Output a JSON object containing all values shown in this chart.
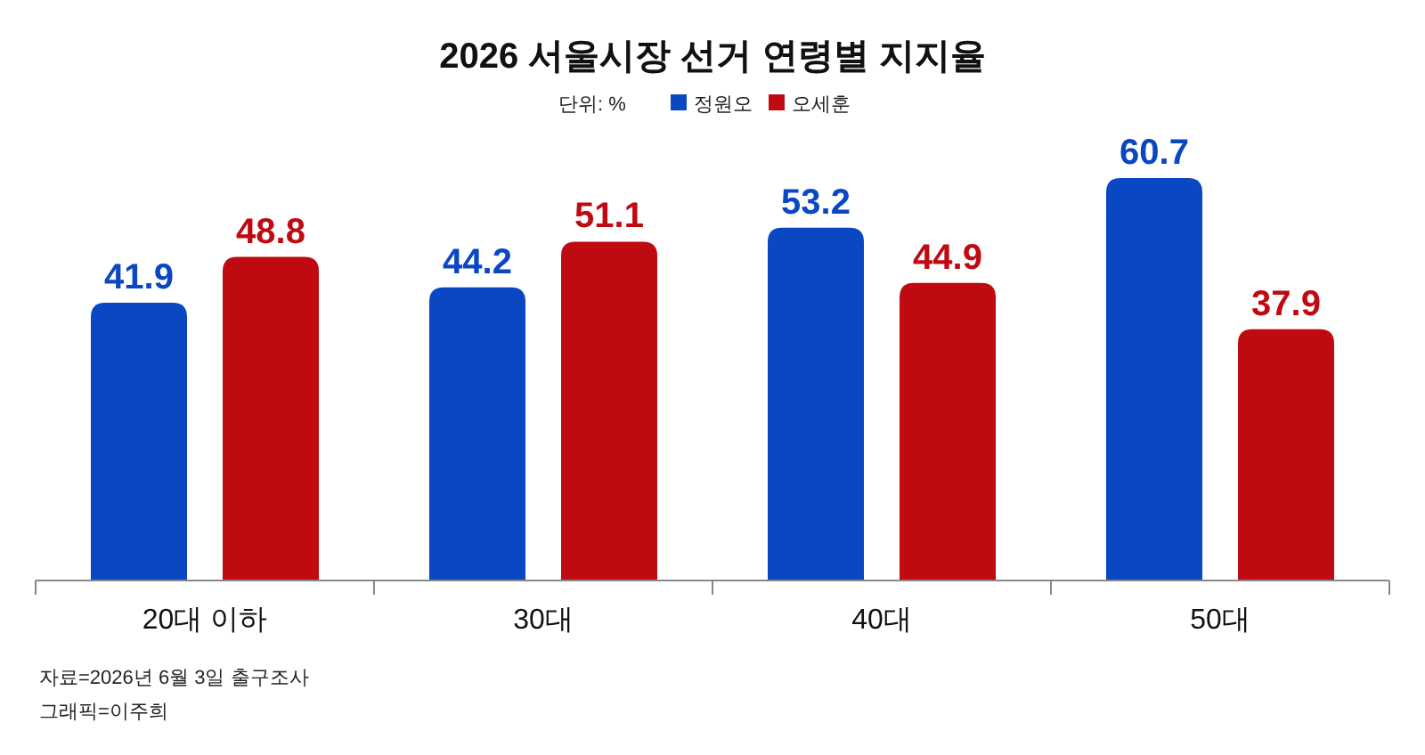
{
  "chart_data": {
    "type": "bar",
    "title": "2026 서울시장 선거 연령별 지지율",
    "legend_title": "단위: %",
    "categories": [
      "20대 이하",
      "30대",
      "40대",
      "50대"
    ],
    "series": [
      {
        "name": "정원오",
        "color": "#0a47c2",
        "values": [
          41.9,
          44.2,
          53.2,
          60.7
        ]
      },
      {
        "name": "오세훈",
        "color": "#c00a12",
        "values": [
          48.8,
          51.1,
          44.9,
          37.9
        ]
      }
    ],
    "data_labels": true,
    "legend": "top",
    "annotations": [
      "자료=2026년 6월 3일 출구조사",
      "그래픽=이주희"
    ]
  }
}
